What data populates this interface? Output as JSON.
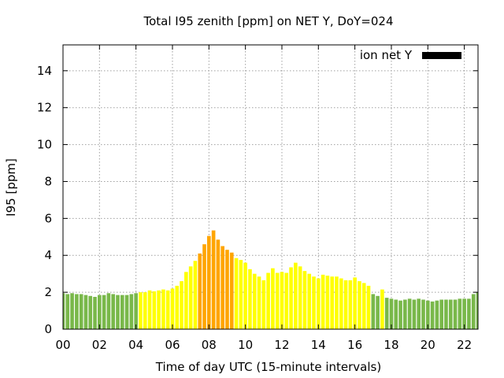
{
  "chart_data": {
    "type": "bar",
    "title": "Total I95 zenith [ppm] on NET Y, DoY=024",
    "xlabel": "Time of day UTC (15-minute intervals)",
    "ylabel": "I95 [ppm]",
    "xlim": [
      0,
      22.75
    ],
    "ylim": [
      0,
      15.4
    ],
    "xticks": [
      "00",
      "02",
      "04",
      "06",
      "08",
      "10",
      "12",
      "14",
      "16",
      "18",
      "20",
      "22"
    ],
    "yticks": [
      "0",
      "2",
      "4",
      "6",
      "8",
      "10",
      "12",
      "14"
    ],
    "grid": true,
    "legend": {
      "position": "top-right",
      "entries": [
        {
          "label": "ion net Y",
          "color": "#000000"
        }
      ]
    },
    "bar_width_hours": 0.2,
    "series": [
      {
        "name": "ion net Y",
        "x": [
          0,
          0.25,
          0.5,
          0.75,
          1,
          1.25,
          1.5,
          1.75,
          2,
          2.25,
          2.5,
          2.75,
          3,
          3.25,
          3.5,
          3.75,
          4,
          4.25,
          4.5,
          4.75,
          5,
          5.25,
          5.5,
          5.75,
          6,
          6.25,
          6.5,
          6.75,
          7,
          7.25,
          7.5,
          7.75,
          8,
          8.25,
          8.5,
          8.75,
          9,
          9.25,
          9.5,
          9.75,
          10,
          10.25,
          10.5,
          10.75,
          11,
          11.25,
          11.5,
          11.75,
          12,
          12.25,
          12.5,
          12.75,
          13,
          13.25,
          13.5,
          13.75,
          14,
          14.25,
          14.5,
          14.75,
          15,
          15.25,
          15.5,
          15.75,
          16,
          16.25,
          16.5,
          16.75,
          17,
          17.25,
          17.5,
          17.75,
          18,
          18.25,
          18.5,
          18.75,
          19,
          19.25,
          19.5,
          19.75,
          20,
          20.25,
          20.5,
          20.75,
          21,
          21.25,
          21.5,
          21.75,
          22,
          22.25,
          22.5,
          22.75
        ],
        "values": [
          1.95,
          1.9,
          1.95,
          1.9,
          1.9,
          1.85,
          1.8,
          1.75,
          1.85,
          1.85,
          1.95,
          1.9,
          1.85,
          1.85,
          1.85,
          1.9,
          1.95,
          2.0,
          2.0,
          2.1,
          2.05,
          2.1,
          2.15,
          2.1,
          2.2,
          2.35,
          2.6,
          3.1,
          3.4,
          3.7,
          4.1,
          4.6,
          5.05,
          5.35,
          4.85,
          4.5,
          4.3,
          4.15,
          3.85,
          3.75,
          3.6,
          3.25,
          3.0,
          2.85,
          2.65,
          3.05,
          3.3,
          3.05,
          3.1,
          3.05,
          3.35,
          3.6,
          3.4,
          3.15,
          3.0,
          2.85,
          2.75,
          2.95,
          2.9,
          2.85,
          2.85,
          2.75,
          2.65,
          2.65,
          2.8,
          2.6,
          2.5,
          2.35,
          1.9,
          1.8,
          2.15,
          1.7,
          1.65,
          1.6,
          1.55,
          1.6,
          1.65,
          1.6,
          1.65,
          1.6,
          1.55,
          1.5,
          1.55,
          1.6,
          1.6,
          1.6,
          1.6,
          1.65,
          1.65,
          1.65,
          1.9,
          2.0
        ],
        "colors": [
          "#79b84a",
          "#79b84a",
          "#79b84a",
          "#79b84a",
          "#79b84a",
          "#79b84a",
          "#79b84a",
          "#79b84a",
          "#79b84a",
          "#79b84a",
          "#79b84a",
          "#79b84a",
          "#79b84a",
          "#79b84a",
          "#79b84a",
          "#79b84a",
          "#79b84a",
          "#ffff00",
          "#ffff00",
          "#ffff00",
          "#ffff00",
          "#ffff00",
          "#ffff00",
          "#ffff00",
          "#ffff00",
          "#ffff00",
          "#ffff00",
          "#ffff00",
          "#ffff00",
          "#ffff00",
          "#ffa500",
          "#ffa500",
          "#ffa500",
          "#ffa500",
          "#ffa500",
          "#ffa500",
          "#ffa500",
          "#ffa500",
          "#ffff00",
          "#ffff00",
          "#ffff00",
          "#ffff00",
          "#ffff00",
          "#ffff00",
          "#ffff00",
          "#ffff00",
          "#ffff00",
          "#ffff00",
          "#ffff00",
          "#ffff00",
          "#ffff00",
          "#ffff00",
          "#ffff00",
          "#ffff00",
          "#ffff00",
          "#ffff00",
          "#ffff00",
          "#ffff00",
          "#ffff00",
          "#ffff00",
          "#ffff00",
          "#ffff00",
          "#ffff00",
          "#ffff00",
          "#ffff00",
          "#ffff00",
          "#ffff00",
          "#ffff00",
          "#79b84a",
          "#79b84a",
          "#ffff00",
          "#79b84a",
          "#79b84a",
          "#79b84a",
          "#79b84a",
          "#79b84a",
          "#79b84a",
          "#79b84a",
          "#79b84a",
          "#79b84a",
          "#79b84a",
          "#79b84a",
          "#79b84a",
          "#79b84a",
          "#79b84a",
          "#79b84a",
          "#79b84a",
          "#79b84a",
          "#79b84a",
          "#79b84a",
          "#79b84a",
          "#79b84a"
        ]
      }
    ]
  }
}
